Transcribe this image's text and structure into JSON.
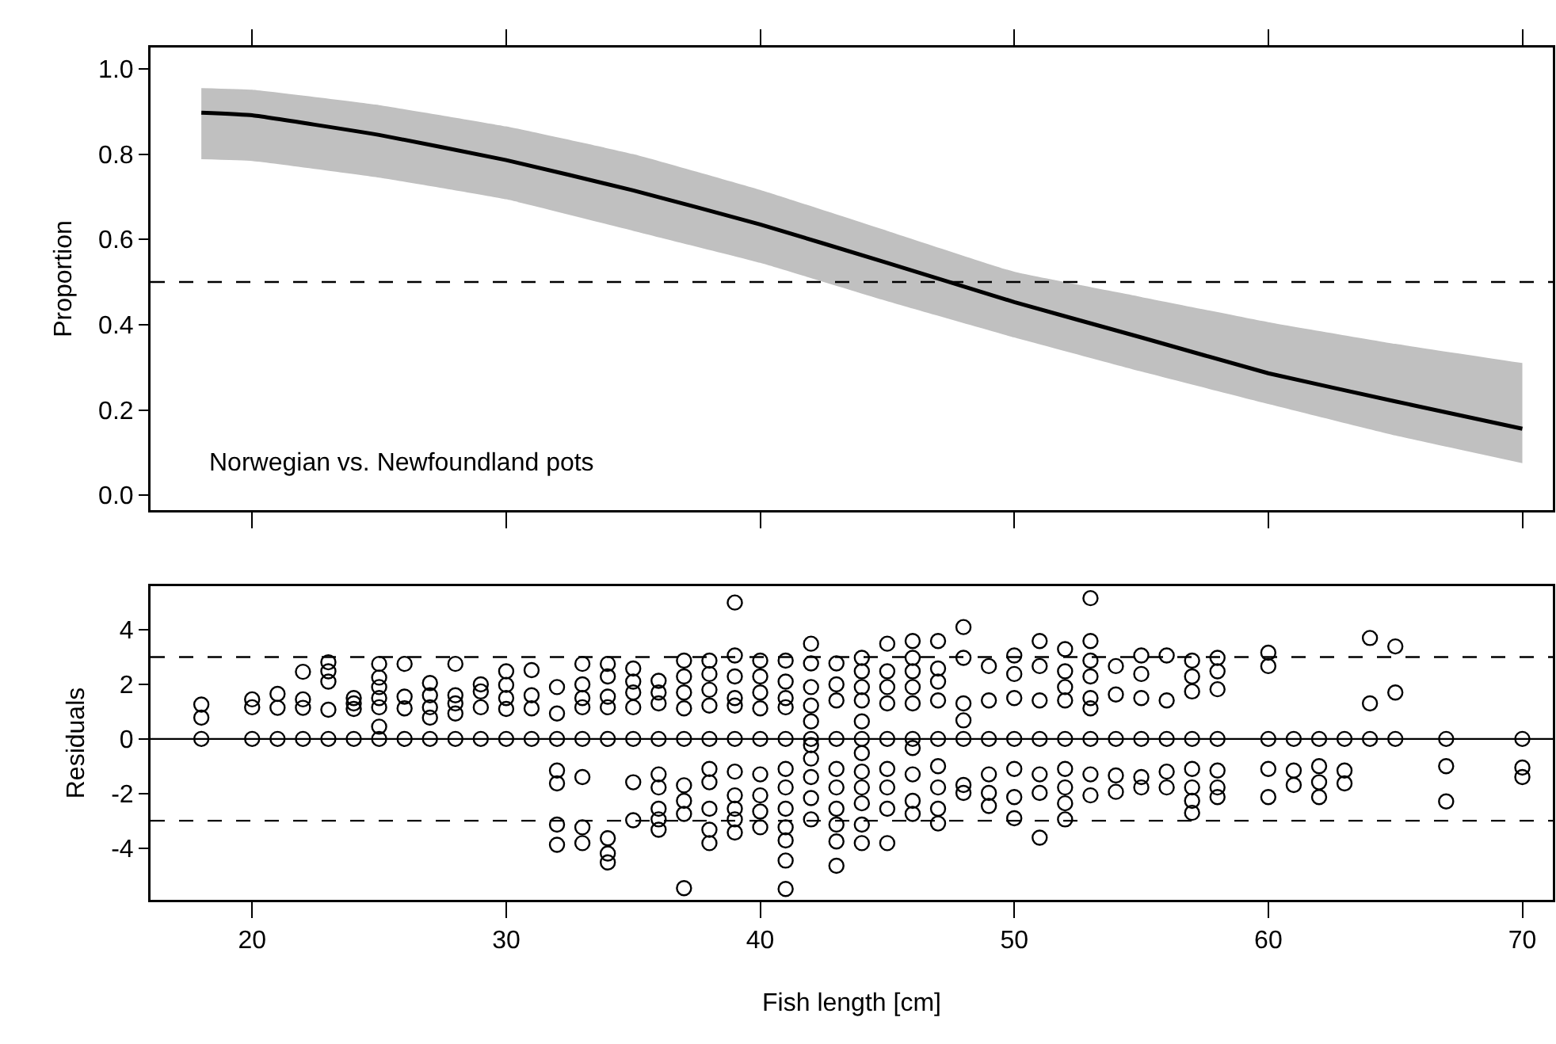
{
  "chart_data": [
    {
      "type": "line",
      "ylabel": "Proportion",
      "annotations": [
        "Norwegian vs. Newfoundland pots"
      ],
      "xlim": [
        16,
        71.2
      ],
      "xticks": [
        20,
        30,
        40,
        50,
        60,
        70
      ],
      "ylim": [
        -0.035,
        1.05
      ],
      "yticks": [
        {
          "value": 0,
          "label": "0.0"
        },
        {
          "value": 0.2,
          "label": "0.2"
        },
        {
          "value": 0.4,
          "label": "0.4"
        },
        {
          "value": 0.6,
          "label": "0.6"
        },
        {
          "value": 0.8,
          "label": "0.8"
        },
        {
          "value": 1,
          "label": "1.0"
        }
      ],
      "tick_labels": "y",
      "series": [
        {
          "color": "#000000",
          "x": [
            18,
            20,
            25,
            30,
            35,
            40,
            45,
            50,
            55,
            60,
            65,
            70
          ],
          "values": [
            0.897,
            0.891,
            0.845,
            0.786,
            0.715,
            0.635,
            0.545,
            0.453,
            0.37,
            0.286,
            0.22,
            0.156
          ],
          "lower": [
            0.788,
            0.784,
            0.745,
            0.694,
            0.62,
            0.545,
            0.455,
            0.37,
            0.29,
            0.214,
            0.14,
            0.075
          ],
          "upper": [
            0.955,
            0.951,
            0.915,
            0.865,
            0.8,
            0.716,
            0.62,
            0.524,
            0.465,
            0.406,
            0.355,
            0.31
          ]
        }
      ],
      "ref_lines": [
        {
          "axis": "y",
          "value": 0.5,
          "line_style": "dashed",
          "color": "#000000"
        }
      ]
    },
    {
      "type": "scatter",
      "xlabel": "Fish length [cm]",
      "ylabel": "Residuals",
      "marker": "circle",
      "xlim": [
        16,
        71.2
      ],
      "xticks": [
        20,
        30,
        40,
        50,
        60,
        70
      ],
      "ylim": [
        -5.9,
        5.6
      ],
      "yticks": [
        -4,
        -2,
        0,
        2,
        4
      ],
      "series": [
        {
          "color": "#000000",
          "x": [
            18,
            18,
            18,
            20,
            20,
            20,
            21,
            21,
            21,
            22,
            22,
            22,
            22,
            23,
            23,
            23,
            23,
            23,
            24,
            24,
            24,
            24,
            25,
            25,
            25,
            25,
            25,
            25,
            25,
            26,
            26,
            26,
            26,
            27,
            27,
            27,
            27,
            27,
            28,
            28,
            28,
            28,
            28,
            29,
            29,
            29,
            29,
            30,
            30,
            30,
            30,
            30,
            31,
            31,
            31,
            31,
            32,
            32,
            32,
            32,
            32,
            32,
            32,
            33,
            33,
            33,
            33,
            33,
            33,
            33,
            33,
            34,
            34,
            34,
            34,
            34,
            34,
            34,
            34,
            35,
            35,
            35,
            35,
            35,
            35,
            35,
            36,
            36,
            36,
            36,
            36,
            36,
            36,
            36,
            36,
            37,
            37,
            37,
            37,
            37,
            37,
            37,
            37,
            37,
            38,
            38,
            38,
            38,
            38,
            38,
            38,
            38,
            38,
            38,
            39,
            39,
            39,
            39,
            39,
            39,
            39,
            39,
            39,
            39,
            39,
            40,
            40,
            40,
            40,
            40,
            40,
            40,
            40,
            40,
            41,
            41,
            41,
            41,
            41,
            41,
            41,
            41,
            41,
            41,
            41,
            41,
            42,
            42,
            42,
            42,
            42,
            42,
            42,
            42,
            42,
            42,
            42,
            43,
            43,
            43,
            43,
            43,
            43,
            43,
            43,
            43,
            43,
            44,
            44,
            44,
            44,
            44,
            44,
            44,
            44,
            44,
            44,
            44,
            44,
            45,
            45,
            45,
            45,
            45,
            45,
            45,
            45,
            45,
            46,
            46,
            46,
            46,
            46,
            46,
            46,
            46,
            46,
            46,
            47,
            47,
            47,
            47,
            47,
            47,
            47,
            47,
            47,
            48,
            48,
            48,
            48,
            48,
            48,
            48,
            49,
            49,
            49,
            49,
            49,
            49,
            50,
            50,
            50,
            50,
            50,
            50,
            50,
            51,
            51,
            51,
            51,
            51,
            51,
            51,
            52,
            52,
            52,
            52,
            52,
            52,
            52,
            52,
            52,
            53,
            53,
            53,
            53,
            53,
            53,
            53,
            53,
            53,
            54,
            54,
            54,
            54,
            54,
            55,
            55,
            55,
            55,
            55,
            55,
            56,
            56,
            56,
            56,
            56,
            57,
            57,
            57,
            57,
            57,
            57,
            57,
            57,
            58,
            58,
            58,
            58,
            58,
            58,
            58,
            60,
            60,
            60,
            60,
            60,
            61,
            61,
            61,
            62,
            62,
            62,
            62,
            63,
            63,
            63,
            64,
            64,
            64,
            65,
            65,
            65,
            67,
            67,
            67,
            70,
            70,
            70
          ],
          "values": [
            1.26,
            0.78,
            0,
            1.45,
            1.16,
            0,
            1.65,
            1.14,
            0,
            2.46,
            1.45,
            1.14,
            0,
            2.81,
            2.48,
            2.1,
            1.07,
            0,
            1.5,
            1.3,
            1.1,
            0,
            2.75,
            2.25,
            1.9,
            1.5,
            1.16,
            0.45,
            0,
            2.75,
            1.55,
            1.12,
            0,
            2.05,
            1.6,
            1.16,
            0.78,
            0,
            2.75,
            1.6,
            1.3,
            0.93,
            0,
            2.0,
            1.74,
            1.16,
            0,
            2.48,
            1.98,
            1.5,
            1.1,
            0,
            2.52,
            1.6,
            1.12,
            0,
            1.9,
            0.93,
            0,
            -1.16,
            -1.63,
            -3.14,
            -3.88,
            2.75,
            2.0,
            1.5,
            1.16,
            0,
            -1.4,
            -3.24,
            -3.82,
            2.75,
            2.29,
            1.55,
            1.16,
            0,
            -3.64,
            -4.2,
            -4.53,
            2.58,
            2.1,
            1.7,
            1.16,
            0,
            -1.59,
            -2.98,
            2.13,
            1.7,
            1.3,
            0,
            -1.3,
            -1.78,
            -2.56,
            -2.95,
            -3.33,
            2.87,
            2.29,
            1.7,
            1.12,
            0,
            -1.7,
            -2.27,
            -2.75,
            -5.47,
            2.87,
            2.38,
            1.8,
            1.22,
            0,
            -1.1,
            -1.59,
            -2.56,
            -3.33,
            -3.82,
            5.0,
            3.06,
            2.29,
            1.5,
            1.22,
            0,
            -1.2,
            -2.07,
            -2.56,
            -2.95,
            -3.43,
            2.87,
            2.29,
            1.7,
            1.12,
            0,
            -1.3,
            -2.07,
            -2.66,
            -3.24,
            2.87,
            2.1,
            1.5,
            1.16,
            0,
            -1.1,
            -1.78,
            -2.56,
            -3.24,
            -3.72,
            -4.46,
            -5.5,
            3.49,
            2.77,
            1.9,
            1.22,
            0.64,
            0,
            -0.23,
            -0.72,
            -1.4,
            -2.17,
            -2.95,
            2.77,
            2.0,
            1.41,
            0,
            -1.1,
            -1.78,
            -2.56,
            -3.14,
            -3.76,
            -4.65,
            2.97,
            2.48,
            1.9,
            1.41,
            0.64,
            0,
            -0.52,
            -1.2,
            -1.78,
            -2.36,
            -3.14,
            -3.82,
            3.49,
            2.48,
            1.9,
            1.3,
            0,
            -1.1,
            -1.78,
            -2.56,
            -3.82,
            3.59,
            2.97,
            2.48,
            1.9,
            1.3,
            0,
            -0.33,
            -1.3,
            -2.27,
            -2.75,
            3.59,
            2.58,
            2.1,
            1.41,
            0,
            -1.0,
            -1.78,
            -2.56,
            -3.1,
            4.1,
            2.97,
            1.3,
            0.68,
            0,
            -1.69,
            -1.98,
            2.67,
            1.41,
            0,
            -1.3,
            -1.98,
            -2.46,
            3.06,
            2.38,
            1.5,
            0,
            -1.1,
            -2.13,
            -2.91,
            3.59,
            2.67,
            1.41,
            0,
            -1.3,
            -1.98,
            -3.62,
            3.29,
            2.48,
            1.9,
            1.41,
            0,
            -1.1,
            -1.78,
            -2.36,
            -2.95,
            5.16,
            3.59,
            2.87,
            2.29,
            1.5,
            1.12,
            0,
            -1.3,
            -2.07,
            2.67,
            1.63,
            0,
            -1.34,
            -1.94,
            3.06,
            2.38,
            1.5,
            0,
            -1.4,
            -1.78,
            3.06,
            1.41,
            0,
            -1.2,
            -1.78,
            2.87,
            2.29,
            1.74,
            0,
            -1.1,
            -1.78,
            -2.27,
            -2.71,
            2.97,
            2.48,
            1.82,
            0,
            -1.16,
            -1.78,
            -2.13,
            3.16,
            2.67,
            0,
            -1.1,
            -2.13,
            0,
            -1.16,
            -1.69,
            0,
            -1.0,
            -1.59,
            -2.13,
            0,
            -1.16,
            -1.63,
            3.7,
            1.3,
            0,
            3.39,
            1.7,
            0,
            0,
            -1.0,
            -2.29,
            0,
            -1.05,
            -1.4
          ]
        }
      ],
      "ref_lines": [
        {
          "axis": "y",
          "value": 0,
          "line_style": "solid",
          "color": "#000000"
        },
        {
          "axis": "y",
          "value": 3,
          "line_style": "dashed",
          "color": "#000000"
        },
        {
          "axis": "y",
          "value": -3,
          "line_style": "dashed",
          "color": "#000000"
        }
      ]
    }
  ]
}
